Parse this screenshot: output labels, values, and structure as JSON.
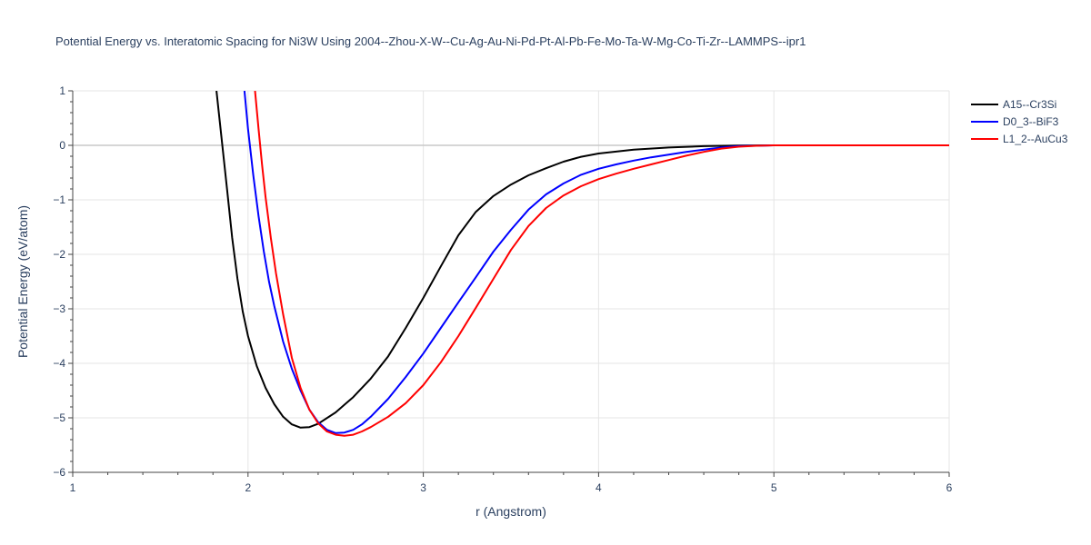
{
  "chart_data": {
    "type": "line",
    "title": "Potential Energy vs. Interatomic Spacing for Ni3W Using 2004--Zhou-X-W--Cu-Ag-Au-Ni-Pd-Pt-Al-Pb-Fe-Mo-Ta-W-Mg-Co-Ti-Zr--LAMMPS--ipr1",
    "xlabel": "r (Angstrom)",
    "ylabel": "Potential Energy (eV/atom)",
    "xlim": [
      1,
      6
    ],
    "ylim": [
      -6,
      1
    ],
    "xticks": [
      1,
      2,
      3,
      4,
      5,
      6
    ],
    "xtick_labels": [
      "1",
      "2",
      "3",
      "4",
      "5",
      "6"
    ],
    "yticks": [
      1,
      0,
      -1,
      -2,
      -3,
      -4,
      -5,
      -6
    ],
    "ytick_labels": [
      "1",
      "0",
      "−1",
      "−2",
      "−3",
      "−4",
      "−5",
      "−6"
    ],
    "grid": true,
    "legend_position": "top-right",
    "series": [
      {
        "name": "A15--Cr3Si",
        "color": "#000000",
        "x": [
          1.82,
          1.85,
          1.88,
          1.91,
          1.94,
          1.97,
          2.0,
          2.05,
          2.1,
          2.15,
          2.2,
          2.25,
          2.3,
          2.35,
          2.4,
          2.5,
          2.6,
          2.7,
          2.8,
          2.9,
          3.0,
          3.1,
          3.2,
          3.3,
          3.4,
          3.5,
          3.6,
          3.7,
          3.8,
          3.9,
          4.0,
          4.2,
          4.4,
          4.6,
          4.8,
          5.0,
          5.2,
          5.5,
          6.0
        ],
        "y": [
          1.0,
          0.1,
          -0.8,
          -1.7,
          -2.45,
          -3.05,
          -3.5,
          -4.05,
          -4.45,
          -4.75,
          -4.98,
          -5.12,
          -5.18,
          -5.17,
          -5.11,
          -4.9,
          -4.62,
          -4.28,
          -3.87,
          -3.35,
          -2.8,
          -2.22,
          -1.65,
          -1.22,
          -0.93,
          -0.72,
          -0.55,
          -0.42,
          -0.3,
          -0.21,
          -0.15,
          -0.08,
          -0.04,
          -0.015,
          -0.005,
          0.0,
          0.0,
          0.0,
          0.0
        ]
      },
      {
        "name": "D0_3--BiF3",
        "color": "#0000ff",
        "x": [
          1.98,
          2.0,
          2.03,
          2.06,
          2.09,
          2.12,
          2.15,
          2.2,
          2.25,
          2.3,
          2.35,
          2.4,
          2.45,
          2.5,
          2.55,
          2.6,
          2.65,
          2.7,
          2.8,
          2.9,
          3.0,
          3.1,
          3.2,
          3.3,
          3.4,
          3.5,
          3.6,
          3.7,
          3.8,
          3.9,
          4.0,
          4.1,
          4.2,
          4.3,
          4.4,
          4.5,
          4.6,
          4.7,
          4.8,
          5.0,
          5.2,
          5.5,
          6.0
        ],
        "y": [
          1.0,
          0.3,
          -0.55,
          -1.3,
          -1.95,
          -2.5,
          -2.95,
          -3.6,
          -4.1,
          -4.5,
          -4.85,
          -5.08,
          -5.22,
          -5.28,
          -5.27,
          -5.22,
          -5.12,
          -4.98,
          -4.65,
          -4.25,
          -3.82,
          -3.35,
          -2.88,
          -2.42,
          -1.95,
          -1.55,
          -1.18,
          -0.9,
          -0.7,
          -0.54,
          -0.43,
          -0.35,
          -0.28,
          -0.22,
          -0.17,
          -0.12,
          -0.08,
          -0.04,
          -0.015,
          0.0,
          0.0,
          0.0,
          0.0
        ]
      },
      {
        "name": "L1_2--AuCu3",
        "color": "#ff0000",
        "x": [
          2.04,
          2.06,
          2.08,
          2.1,
          2.13,
          2.16,
          2.2,
          2.25,
          2.3,
          2.35,
          2.4,
          2.45,
          2.5,
          2.55,
          2.6,
          2.65,
          2.7,
          2.8,
          2.9,
          3.0,
          3.1,
          3.2,
          3.3,
          3.4,
          3.5,
          3.6,
          3.7,
          3.8,
          3.9,
          4.0,
          4.1,
          4.2,
          4.3,
          4.4,
          4.5,
          4.6,
          4.7,
          4.8,
          4.9,
          5.0,
          5.2,
          5.5,
          6.0
        ],
        "y": [
          1.0,
          0.3,
          -0.35,
          -0.95,
          -1.7,
          -2.35,
          -3.1,
          -3.9,
          -4.45,
          -4.85,
          -5.1,
          -5.25,
          -5.31,
          -5.33,
          -5.31,
          -5.25,
          -5.17,
          -4.98,
          -4.73,
          -4.4,
          -3.98,
          -3.5,
          -2.98,
          -2.45,
          -1.92,
          -1.48,
          -1.15,
          -0.92,
          -0.75,
          -0.62,
          -0.52,
          -0.43,
          -0.35,
          -0.27,
          -0.19,
          -0.12,
          -0.06,
          -0.025,
          -0.008,
          0.0,
          0.0,
          0.0,
          0.0
        ]
      }
    ]
  }
}
